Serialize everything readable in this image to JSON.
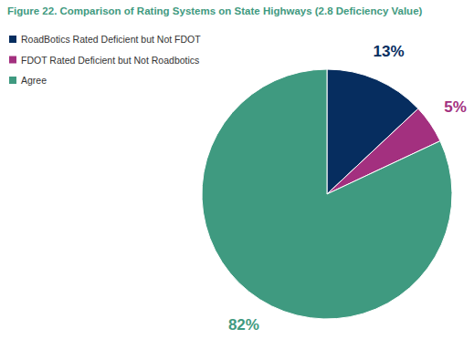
{
  "chart_data": {
    "type": "pie",
    "title": "Figure 22. Comparison of Rating Systems on State Highways (2.8 Deficiency Value)",
    "categories": [
      "RoadBotics Rated Deficient but Not FDOT",
      "FDOT Rated Deficient but Not Roadbotics",
      "Agree"
    ],
    "values": [
      13,
      5,
      82
    ],
    "value_labels": [
      "13%",
      "5%",
      "82%"
    ],
    "colors": [
      "#062d5f",
      "#a3307f",
      "#3f9a80"
    ],
    "data_labels": true,
    "legend": "upper left"
  }
}
